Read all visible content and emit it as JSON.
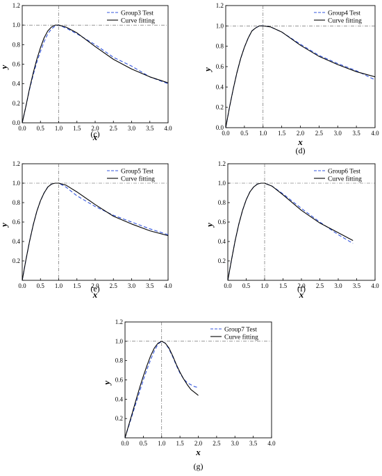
{
  "chart_data": [
    {
      "type": "line",
      "caption": "(c)",
      "xlabel": "x",
      "ylabel": "y",
      "xlim": [
        0,
        4
      ],
      "ylim": [
        0,
        1.2
      ],
      "xticks": [
        "0.0",
        "0.5",
        "1.0",
        "1.5",
        "2.0",
        "2.5",
        "3.0",
        "3.5",
        "4.0"
      ],
      "yticks": [
        "0.0",
        "0.2",
        "0.4",
        "0.6",
        "0.8",
        "1.0",
        "1.2"
      ],
      "reference_lines": {
        "x": 1.0,
        "y": 1.0
      },
      "legend_position": "top-right",
      "series": [
        {
          "name": "Group3 Test",
          "style": "dashed",
          "color": "#3355dd",
          "x": [
            0.0,
            0.1,
            0.2,
            0.3,
            0.4,
            0.5,
            0.6,
            0.7,
            0.8,
            0.9,
            1.0,
            1.2,
            1.5,
            2.0,
            2.5,
            3.0,
            3.5,
            4.0
          ],
          "y": [
            0.0,
            0.17,
            0.34,
            0.49,
            0.62,
            0.73,
            0.83,
            0.91,
            0.96,
            0.99,
            1.0,
            0.97,
            0.91,
            0.8,
            0.67,
            0.58,
            0.47,
            0.4
          ]
        },
        {
          "name": "Curve fitting",
          "style": "solid",
          "color": "#000000",
          "x": [
            0.0,
            0.1,
            0.2,
            0.3,
            0.4,
            0.5,
            0.6,
            0.7,
            0.8,
            0.9,
            1.0,
            1.2,
            1.5,
            2.0,
            2.5,
            3.0,
            3.5,
            4.0
          ],
          "y": [
            0.0,
            0.17,
            0.35,
            0.51,
            0.65,
            0.77,
            0.87,
            0.94,
            0.98,
            1.0,
            1.0,
            0.98,
            0.92,
            0.78,
            0.65,
            0.55,
            0.47,
            0.41
          ]
        }
      ]
    },
    {
      "type": "line",
      "caption": "(d)",
      "xlabel": "x",
      "ylabel": "y",
      "xlim": [
        0,
        4
      ],
      "ylim": [
        0,
        1.2
      ],
      "xticks": [
        "0.0",
        "0.5",
        "1.0",
        "1.5",
        "2.0",
        "2.5",
        "3.0",
        "3.5",
        "4.0"
      ],
      "yticks": [
        "0.0",
        "0.2",
        "0.4",
        "0.6",
        "0.8",
        "1.0",
        "1.2"
      ],
      "reference_lines": {
        "x": 1.0,
        "y": 1.0
      },
      "legend_position": "top-right",
      "series": [
        {
          "name": "Group4 Test",
          "style": "dashed",
          "color": "#3355dd",
          "x": [
            0.0,
            0.1,
            0.2,
            0.3,
            0.4,
            0.5,
            0.6,
            0.7,
            0.8,
            0.9,
            1.0,
            1.2,
            1.5,
            2.0,
            2.5,
            3.0,
            3.5,
            4.0
          ],
          "y": [
            0.0,
            0.2,
            0.38,
            0.54,
            0.68,
            0.79,
            0.88,
            0.95,
            0.98,
            1.0,
            1.0,
            0.99,
            0.94,
            0.82,
            0.71,
            0.63,
            0.56,
            0.47
          ]
        },
        {
          "name": "Curve fitting",
          "style": "solid",
          "color": "#000000",
          "x": [
            0.0,
            0.1,
            0.2,
            0.3,
            0.4,
            0.5,
            0.6,
            0.7,
            0.8,
            0.9,
            1.0,
            1.2,
            1.5,
            2.0,
            2.5,
            3.0,
            3.5,
            4.0
          ],
          "y": [
            0.0,
            0.2,
            0.38,
            0.54,
            0.68,
            0.79,
            0.88,
            0.95,
            0.98,
            1.0,
            1.0,
            0.99,
            0.94,
            0.81,
            0.7,
            0.62,
            0.55,
            0.5
          ]
        }
      ]
    },
    {
      "type": "line",
      "caption": "(e)",
      "xlabel": "x",
      "ylabel": "y",
      "xlim": [
        0,
        4
      ],
      "ylim": [
        0,
        1.2
      ],
      "xticks": [
        "0.0",
        "0.5",
        "1.0",
        "1.5",
        "2.0",
        "2.5",
        "3.0",
        "3.5",
        "4.0"
      ],
      "yticks": [
        "",
        "0.2",
        "0.4",
        "0.6",
        "0.8",
        "1.0",
        "1.2"
      ],
      "reference_lines": {
        "x": 1.0,
        "y": 1.0
      },
      "legend_position": "top-right",
      "series": [
        {
          "name": "Group5 Test",
          "style": "dashed",
          "color": "#3355dd",
          "x": [
            0.0,
            0.1,
            0.2,
            0.3,
            0.4,
            0.5,
            0.6,
            0.7,
            0.8,
            0.9,
            1.0,
            1.2,
            1.5,
            2.0,
            2.5,
            3.0,
            3.5,
            4.0
          ],
          "y": [
            0.0,
            0.21,
            0.4,
            0.57,
            0.71,
            0.82,
            0.9,
            0.96,
            0.99,
            1.0,
            1.0,
            0.96,
            0.87,
            0.76,
            0.67,
            0.6,
            0.53,
            0.47
          ]
        },
        {
          "name": "Curve fitting",
          "style": "solid",
          "color": "#000000",
          "x": [
            0.0,
            0.1,
            0.2,
            0.3,
            0.4,
            0.5,
            0.6,
            0.7,
            0.8,
            0.9,
            1.0,
            1.2,
            1.5,
            2.0,
            2.5,
            3.0,
            3.5,
            4.0
          ],
          "y": [
            0.0,
            0.21,
            0.4,
            0.57,
            0.71,
            0.82,
            0.9,
            0.96,
            0.99,
            1.0,
            1.0,
            0.98,
            0.91,
            0.78,
            0.66,
            0.58,
            0.51,
            0.46
          ]
        }
      ]
    },
    {
      "type": "line",
      "caption": "(f)",
      "xlabel": "x",
      "ylabel": "y",
      "xlim": [
        0,
        4
      ],
      "ylim": [
        0,
        1.2
      ],
      "xticks": [
        "0.0",
        "0.5",
        "1.0",
        "1.5",
        "2.0",
        "2.5",
        "3.0",
        "3.5",
        "4.0"
      ],
      "yticks": [
        "",
        "0.2",
        "0.4",
        "0.6",
        "0.8",
        "1.0",
        "1.2"
      ],
      "reference_lines": {
        "x": 1.0,
        "y": 1.0
      },
      "legend_position": "top-right",
      "series": [
        {
          "name": "Group6 Test",
          "style": "dashed",
          "color": "#3355dd",
          "x": [
            0.0,
            0.1,
            0.2,
            0.3,
            0.4,
            0.5,
            0.6,
            0.7,
            0.8,
            0.9,
            1.0,
            1.2,
            1.5,
            2.0,
            2.5,
            3.0,
            3.4
          ],
          "y": [
            0.0,
            0.21,
            0.41,
            0.58,
            0.72,
            0.83,
            0.91,
            0.96,
            0.99,
            1.0,
            1.0,
            0.97,
            0.89,
            0.74,
            0.6,
            0.47,
            0.38
          ]
        },
        {
          "name": "Curve fitting",
          "style": "solid",
          "color": "#000000",
          "x": [
            0.0,
            0.1,
            0.2,
            0.3,
            0.4,
            0.5,
            0.6,
            0.7,
            0.8,
            0.9,
            1.0,
            1.2,
            1.5,
            2.0,
            2.5,
            3.0,
            3.4
          ],
          "y": [
            0.0,
            0.21,
            0.41,
            0.58,
            0.72,
            0.83,
            0.91,
            0.96,
            0.99,
            1.0,
            1.0,
            0.97,
            0.88,
            0.72,
            0.59,
            0.49,
            0.41
          ]
        }
      ]
    },
    {
      "type": "line",
      "caption": "(g)",
      "xlabel": "x",
      "ylabel": "y",
      "xlim": [
        0,
        4
      ],
      "ylim": [
        0,
        1.2
      ],
      "xticks": [
        "0.0",
        "0.5",
        "1.0",
        "1.5",
        "2.0",
        "2.5",
        "3.0",
        "3.5",
        "4.0"
      ],
      "yticks": [
        "",
        "0.2",
        "0.4",
        "0.6",
        "0.8",
        "1.0",
        "1.2"
      ],
      "reference_lines": {
        "x": 1.0,
        "y": 1.0
      },
      "legend_position": "top-right",
      "series": [
        {
          "name": "Group7 Test",
          "style": "dashed",
          "color": "#3355dd",
          "x": [
            0.0,
            0.1,
            0.2,
            0.3,
            0.4,
            0.5,
            0.6,
            0.7,
            0.8,
            0.9,
            1.0,
            1.1,
            1.2,
            1.3,
            1.4,
            1.5,
            1.6,
            1.7,
            1.8,
            1.9,
            2.0
          ],
          "y": [
            0.0,
            0.12,
            0.24,
            0.36,
            0.48,
            0.6,
            0.71,
            0.81,
            0.9,
            0.97,
            1.0,
            0.98,
            0.92,
            0.84,
            0.75,
            0.67,
            0.61,
            0.57,
            0.55,
            0.53,
            0.52
          ]
        },
        {
          "name": "Curve fitting",
          "style": "solid",
          "color": "#000000",
          "x": [
            0.0,
            0.1,
            0.2,
            0.3,
            0.4,
            0.5,
            0.6,
            0.7,
            0.8,
            0.9,
            1.0,
            1.1,
            1.2,
            1.3,
            1.4,
            1.5,
            1.6,
            1.7,
            1.8,
            1.9,
            2.0
          ],
          "y": [
            0.0,
            0.13,
            0.26,
            0.39,
            0.52,
            0.64,
            0.75,
            0.85,
            0.93,
            0.98,
            1.0,
            0.98,
            0.93,
            0.85,
            0.76,
            0.68,
            0.61,
            0.55,
            0.5,
            0.47,
            0.44
          ]
        }
      ]
    }
  ]
}
